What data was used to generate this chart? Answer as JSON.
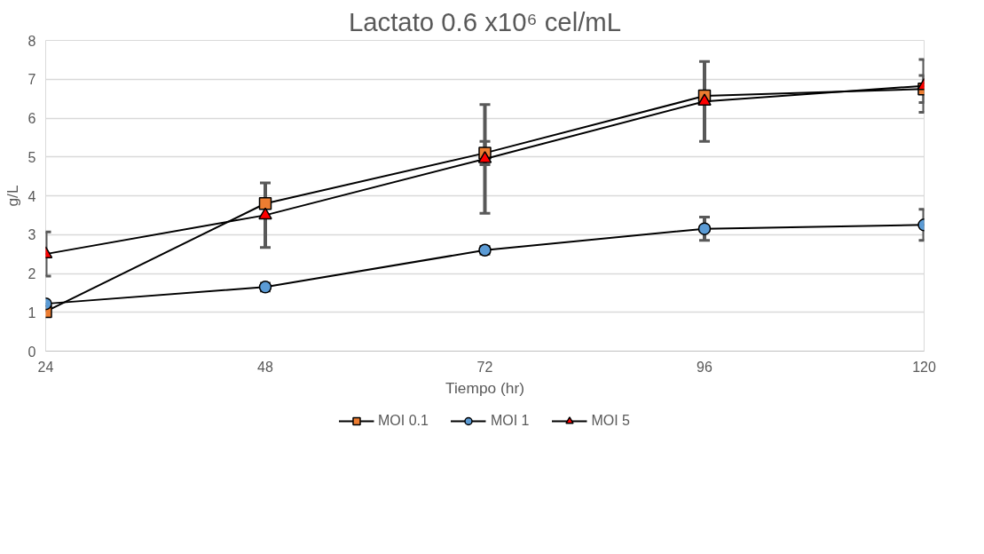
{
  "chart_data": {
    "type": "line",
    "title": "Lactato 0.6 x10⁶ cel/mL",
    "xlabel": "Tiempo (hr)",
    "ylabel": "g/L",
    "x": [
      24,
      48,
      72,
      96,
      120
    ],
    "xlim": [
      24,
      120
    ],
    "xticks": [
      24,
      48,
      72,
      96,
      120
    ],
    "ylim": [
      0,
      8
    ],
    "yticks": [
      0,
      1,
      2,
      3,
      4,
      5,
      6,
      7,
      8
    ],
    "grid": "y",
    "legend": "bottom",
    "series": [
      {
        "name": "MOI 0.1",
        "color": "#ed7d31",
        "marker": "square",
        "values": [
          1.02,
          3.8,
          5.1,
          6.57,
          6.75
        ],
        "errors": [
          null,
          0.1,
          0.3,
          null,
          0.35
        ]
      },
      {
        "name": "MOI 1",
        "color": "#5b9bd5",
        "marker": "circle",
        "values": [
          1.22,
          1.65,
          2.6,
          3.15,
          3.25
        ],
        "errors": [
          null,
          0.1,
          0.1,
          0.3,
          0.4
        ]
      },
      {
        "name": "MOI 5",
        "color": "#ff0000",
        "marker": "triangle",
        "values": [
          2.5,
          3.5,
          4.95,
          6.43,
          6.83
        ],
        "errors": [
          0.57,
          0.83,
          1.4,
          1.03,
          0.68
        ]
      }
    ]
  }
}
